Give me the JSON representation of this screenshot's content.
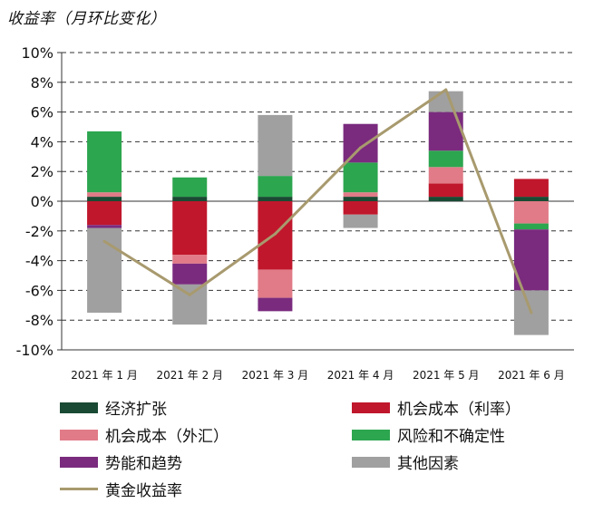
{
  "chart_data": {
    "type": "bar",
    "stacked": true,
    "title": "收益率（月环比变化）",
    "categories": [
      "2021 年 1 月",
      "2021 年 2 月",
      "2021 年 3 月",
      "2021 年 4 月",
      "2021 年 5 月",
      "2021 年 6 月"
    ],
    "ylim": [
      -10,
      10
    ],
    "yticks": [
      "-10%",
      "-8%",
      "-6%",
      "-4%",
      "-2%",
      "0%",
      "2%",
      "4%",
      "6%",
      "8%",
      "10%"
    ],
    "grid": true,
    "legend_position": "bottom",
    "series": [
      {
        "name": "经济扩张",
        "color": "#1a4a33",
        "values": [
          0.3,
          0.3,
          0.3,
          0.3,
          0.3,
          0.3
        ]
      },
      {
        "name": "机会成本（利率）",
        "color": "#c0172c",
        "values": [
          -1.6,
          -3.6,
          -4.6,
          -0.9,
          0.9,
          1.2
        ]
      },
      {
        "name": "机会成本（外汇）",
        "color": "#e07b87",
        "values": [
          0.3,
          -0.6,
          -1.9,
          0.3,
          1.1,
          -1.5
        ]
      },
      {
        "name": "风险和不确定性",
        "color": "#2ca64f",
        "values": [
          4.1,
          1.3,
          1.4,
          2.0,
          1.1,
          -0.4
        ]
      },
      {
        "name": "势能和趋势",
        "color": "#7a2b7e",
        "values": [
          -0.2,
          -1.4,
          -0.9,
          2.6,
          2.6,
          -4.1
        ]
      },
      {
        "name": "其他因素",
        "color": "#a0a0a0",
        "values": [
          -5.7,
          -2.7,
          4.1,
          -0.9,
          1.4,
          -3.0
        ]
      }
    ],
    "line": {
      "name": "黄金收益率",
      "color": "#a89a6e",
      "values": [
        -2.7,
        -6.3,
        -2.2,
        3.6,
        7.5,
        -7.5
      ]
    }
  }
}
